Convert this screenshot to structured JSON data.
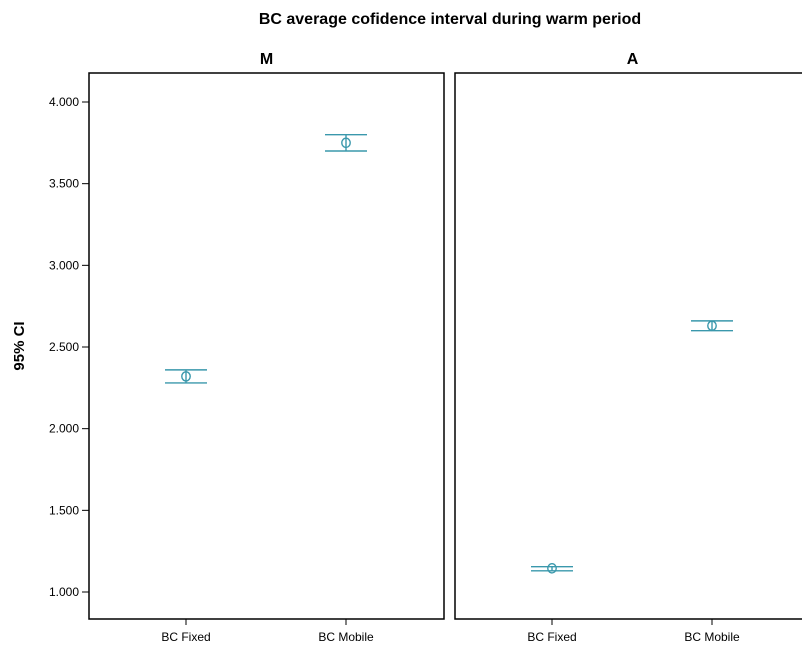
{
  "chart_data": {
    "type": "scatter",
    "title": "BC average cofidence interval during warm period",
    "ylabel": "95% CI",
    "xlabel": "",
    "ylim": [
      0.95,
      4.15
    ],
    "y_ticks": [
      "1.000",
      "1.500",
      "2.000",
      "2.500",
      "3.000",
      "3.500",
      "4.000"
    ],
    "y_tick_values": [
      1.0,
      1.5,
      2.0,
      2.5,
      3.0,
      3.5,
      4.0
    ],
    "categories": [
      "BC Fixed",
      "BC Mobile"
    ],
    "panels": [
      {
        "name": "M",
        "points": [
          {
            "category": "BC Fixed",
            "mean": 2.32,
            "lower": 2.28,
            "upper": 2.36
          },
          {
            "category": "BC Mobile",
            "mean": 3.75,
            "lower": 3.7,
            "upper": 3.8
          }
        ]
      },
      {
        "name": "A",
        "points": [
          {
            "category": "BC Fixed",
            "mean": 1.145,
            "lower": 1.13,
            "upper": 1.155
          },
          {
            "category": "BC Mobile",
            "mean": 2.63,
            "lower": 2.6,
            "upper": 2.66
          }
        ]
      }
    ],
    "grid": false,
    "colors": {
      "ci": "#3a98ac",
      "frame": "#000000"
    }
  }
}
